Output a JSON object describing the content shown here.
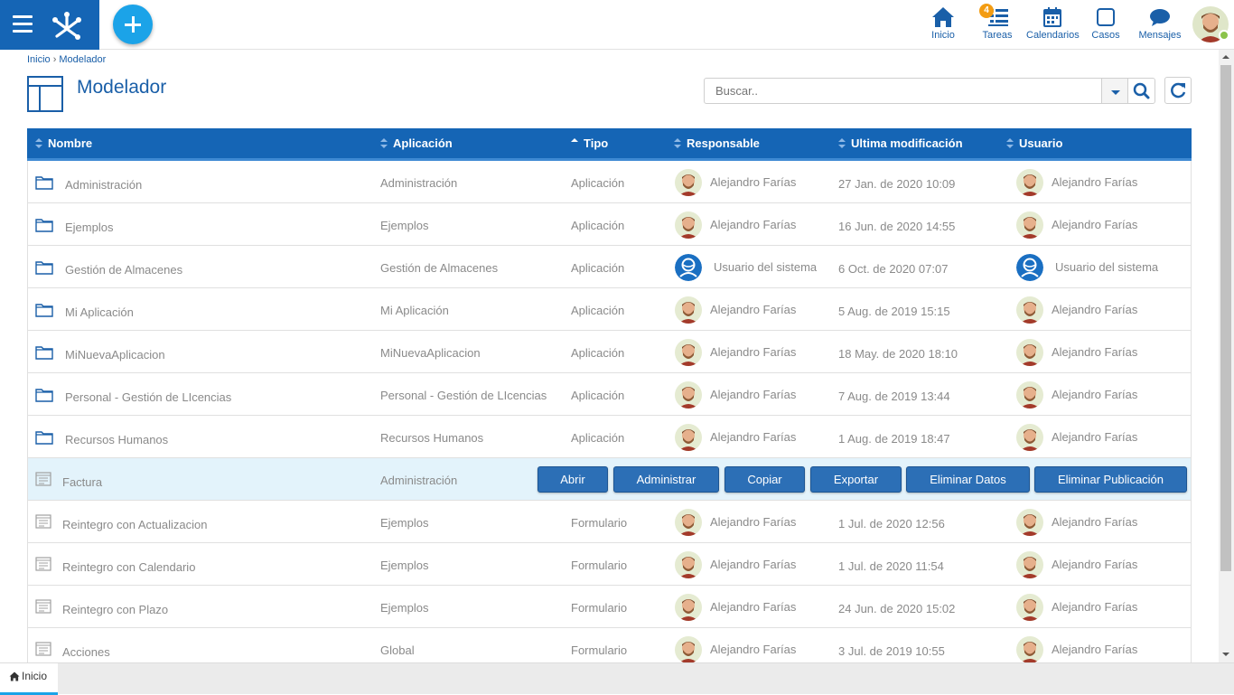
{
  "topbar": {
    "nav": [
      {
        "key": "inicio",
        "label": "Inicio",
        "icon": "home-icon"
      },
      {
        "key": "tareas",
        "label": "Tareas",
        "icon": "tasks-icon",
        "badge": "4"
      },
      {
        "key": "calendarios",
        "label": "Calendarios",
        "icon": "calendar-icon"
      },
      {
        "key": "casos",
        "label": "Casos",
        "icon": "case-icon"
      },
      {
        "key": "mensajes",
        "label": "Mensajes",
        "icon": "message-icon"
      }
    ],
    "status_color": "#8bc34a"
  },
  "breadcrumb": {
    "home": "Inicio",
    "separator": "›",
    "current": "Modelador"
  },
  "page": {
    "title": "Modelador"
  },
  "search": {
    "placeholder": "Buscar.."
  },
  "table": {
    "columns": [
      "Nombre",
      "Aplicación",
      "Tipo",
      "Responsable",
      "Ultima modificación",
      "Usuario"
    ],
    "sorted_column": "Tipo",
    "rows": [
      {
        "kind": "folder",
        "name": "Administración",
        "app": "Administración",
        "tipo": "Aplicación",
        "responsable": "Alejandro Farías",
        "resp_avatar": "person",
        "date": "27 Jan. de 2020 10:09",
        "usuario": "Alejandro Farías",
        "user_avatar": "person"
      },
      {
        "kind": "folder",
        "name": "Ejemplos",
        "app": "Ejemplos",
        "tipo": "Aplicación",
        "responsable": "Alejandro Farías",
        "resp_avatar": "person",
        "date": "16 Jun. de 2020 14:55",
        "usuario": "Alejandro Farías",
        "user_avatar": "person"
      },
      {
        "kind": "folder",
        "name": "Gestión de Almacenes",
        "app": "Gestión de Almacenes",
        "tipo": "Aplicación",
        "responsable": "Usuario del sistema",
        "resp_avatar": "system",
        "date": "6 Oct. de 2020 07:07",
        "usuario": "Usuario del sistema",
        "user_avatar": "system"
      },
      {
        "kind": "folder",
        "name": "Mi Aplicación",
        "app": "Mi Aplicación",
        "tipo": "Aplicación",
        "responsable": "Alejandro Farías",
        "resp_avatar": "person",
        "date": "5 Aug. de 2019 15:15",
        "usuario": "Alejandro Farías",
        "user_avatar": "person"
      },
      {
        "kind": "folder",
        "name": "MiNuevaAplicacion",
        "app": "MiNuevaAplicacion",
        "tipo": "Aplicación",
        "responsable": "Alejandro Farías",
        "resp_avatar": "person",
        "date": "18 May. de 2020 18:10",
        "usuario": "Alejandro Farías",
        "user_avatar": "person"
      },
      {
        "kind": "folder",
        "name": "Personal - Gestión de LIcencias",
        "app": "Personal - Gestión de LIcencias",
        "tipo": "Aplicación",
        "responsable": "Alejandro Farías",
        "resp_avatar": "person",
        "date": "7 Aug. de 2019 13:44",
        "usuario": "Alejandro Farías",
        "user_avatar": "person"
      },
      {
        "kind": "folder",
        "name": "Recursos Humanos",
        "app": "Recursos Humanos",
        "tipo": "Aplicación",
        "responsable": "Alejandro Farías",
        "resp_avatar": "person",
        "date": "1 Aug. de 2019 18:47",
        "usuario": "Alejandro Farías",
        "user_avatar": "person"
      },
      {
        "kind": "form",
        "name": "Factura",
        "app": "Administración",
        "selected": true
      },
      {
        "kind": "form",
        "name": "Reintegro con Actualizacion",
        "app": "Ejemplos",
        "tipo": "Formulario",
        "responsable": "Alejandro Farías",
        "resp_avatar": "person",
        "date": "1 Jul. de 2020 12:56",
        "usuario": "Alejandro Farías",
        "user_avatar": "person"
      },
      {
        "kind": "form",
        "name": "Reintegro con Calendario",
        "app": "Ejemplos",
        "tipo": "Formulario",
        "responsable": "Alejandro Farías",
        "resp_avatar": "person",
        "date": "1 Jul. de 2020 11:54",
        "usuario": "Alejandro Farías",
        "user_avatar": "person"
      },
      {
        "kind": "form",
        "name": "Reintegro con Plazo",
        "app": "Ejemplos",
        "tipo": "Formulario",
        "responsable": "Alejandro Farías",
        "resp_avatar": "person",
        "date": "24 Jun. de 2020 15:02",
        "usuario": "Alejandro Farías",
        "user_avatar": "person"
      },
      {
        "kind": "form",
        "name": "Acciones",
        "app": "Global",
        "tipo": "Formulario",
        "responsable": "Alejandro Farías",
        "resp_avatar": "person",
        "date": "3 Jul. de 2019 10:55",
        "usuario": "Alejandro Farías",
        "user_avatar": "person"
      }
    ],
    "row_actions": [
      "Abrir",
      "Administrar",
      "Copiar",
      "Exportar",
      "Eliminar Datos",
      "Eliminar Publicación"
    ]
  },
  "bottom_tabs": [
    {
      "label": "Inicio",
      "icon": "home-icon"
    }
  ],
  "colors": {
    "brand": "#1565b5",
    "accent": "#1ba3e8",
    "header": "#1565b5",
    "selected_row": "#e3f3fb",
    "action_button": "#2c6fb6",
    "badge": "#f39c12"
  }
}
